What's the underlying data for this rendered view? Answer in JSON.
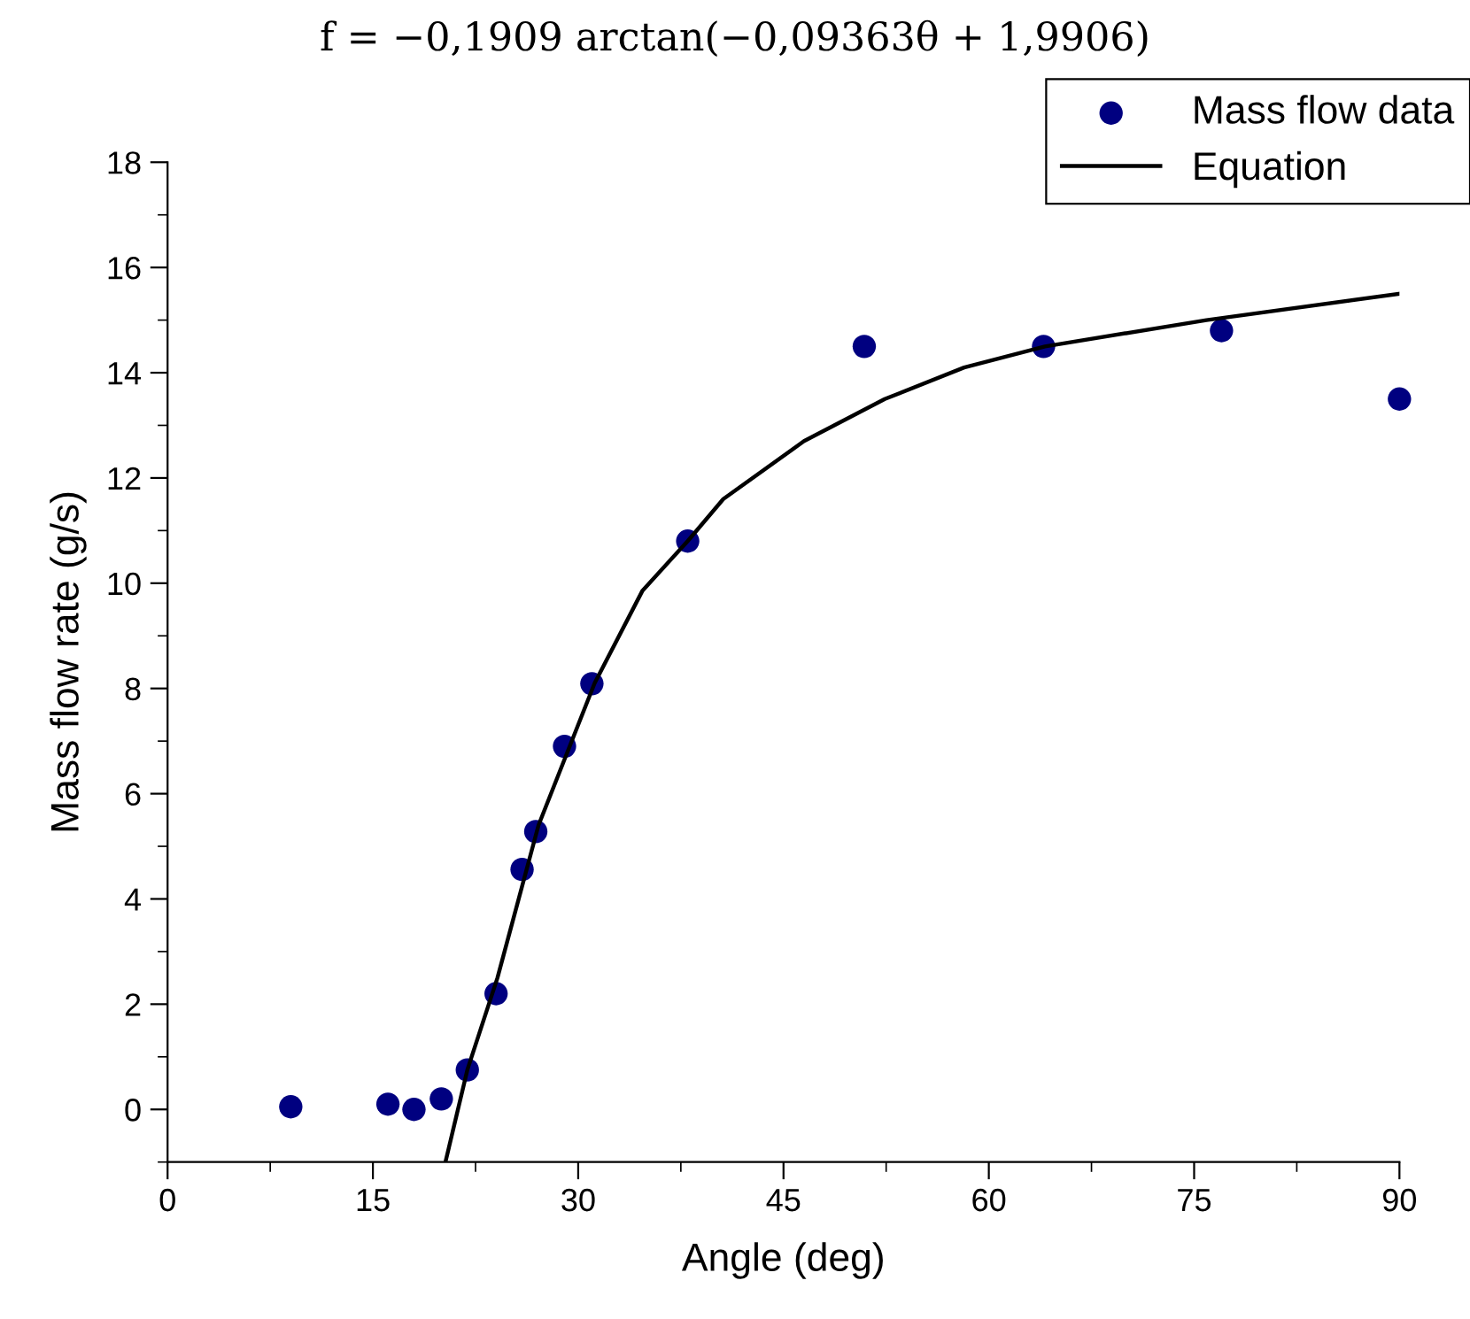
{
  "chart_data": {
    "type": "scatter",
    "title": "f = −0,1909 arctan(−0,09363θ + 1,9906)",
    "xlabel": "Angle (deg)",
    "ylabel": "Mass flow rate (g/s)",
    "xlim": [
      0,
      90
    ],
    "xticks": [
      0,
      15,
      30,
      45,
      60,
      75,
      90
    ],
    "ylim": [
      -1,
      18
    ],
    "yticks": [
      0,
      2,
      4,
      6,
      8,
      10,
      12,
      14,
      16,
      18
    ],
    "grid": false,
    "legend": "top right",
    "series": [
      {
        "name": "Mass flow data",
        "color": "#000080",
        "marker": "circle",
        "x": [
          9.0,
          16.1,
          18.0,
          20.0,
          21.9,
          24.0,
          25.9,
          26.9,
          29.0,
          31.0,
          38.0,
          50.9,
          64.0,
          77.0,
          90.0
        ],
        "values": [
          0.05,
          0.1,
          0,
          0.2,
          0.75,
          2.2,
          4.56,
          5.28,
          6.9,
          8.09,
          10.8,
          14.5,
          14.5,
          14.8,
          13.5
        ]
      },
      {
        "name": "Equation",
        "type": "line",
        "color": "#000000",
        "line_style": "solid",
        "marker": "none",
        "x": [
          20.3,
          21.9,
          24.1,
          27.1,
          31.2,
          34.7,
          38.0,
          40.6,
          46.5,
          52.4,
          58.2,
          64.1,
          75.9,
          90.0
        ],
        "values": [
          -1,
          0.75,
          2.5,
          5.4,
          8.1,
          9.86,
          10.8,
          11.6,
          12.7,
          13.5,
          14.1,
          14.5,
          15.0,
          15.5
        ]
      }
    ]
  }
}
